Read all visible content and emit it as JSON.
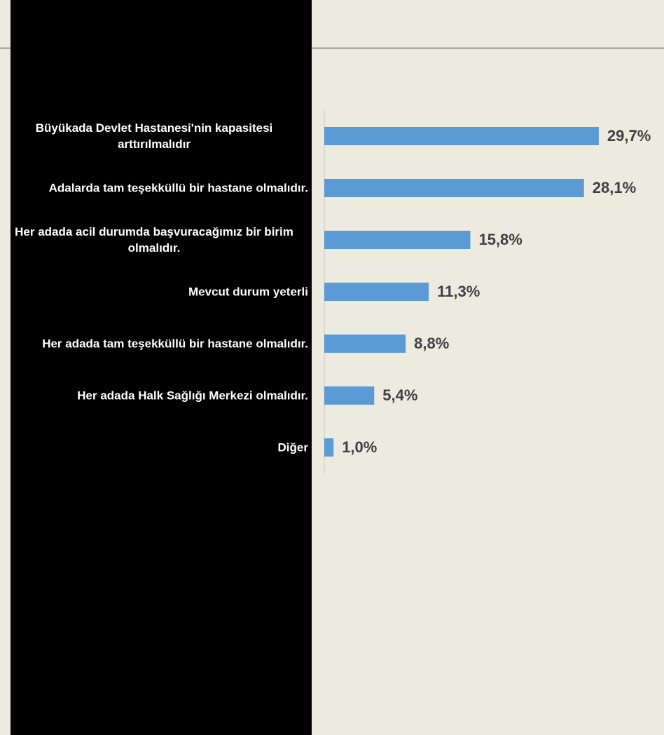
{
  "chart_data": {
    "type": "bar",
    "orientation": "horizontal",
    "categories": [
      "Büyükada Devlet Hastanesi'nin kapasitesi arttırılmalıdır",
      "Adalarda tam teşekküllü bir hastane olmalıdır.",
      "Her adada acil durumda başvuracağımız bir birim olmalıdır.",
      "Mevcut durum yeterli",
      "Her adada tam teşekküllü bir hastane olmalıdır.",
      "Her adada Halk Sağlığı Merkezi olmalıdır.",
      "Diğer"
    ],
    "values": [
      29.7,
      28.1,
      15.8,
      11.3,
      8.8,
      5.4,
      1.0
    ],
    "value_labels": [
      "29,7%",
      "28,1%",
      "15,8%",
      "11,3%",
      "8,8%",
      "5,4%",
      "1,0%"
    ],
    "color": "#5b9bd5",
    "xlim": [
      0,
      36
    ]
  }
}
